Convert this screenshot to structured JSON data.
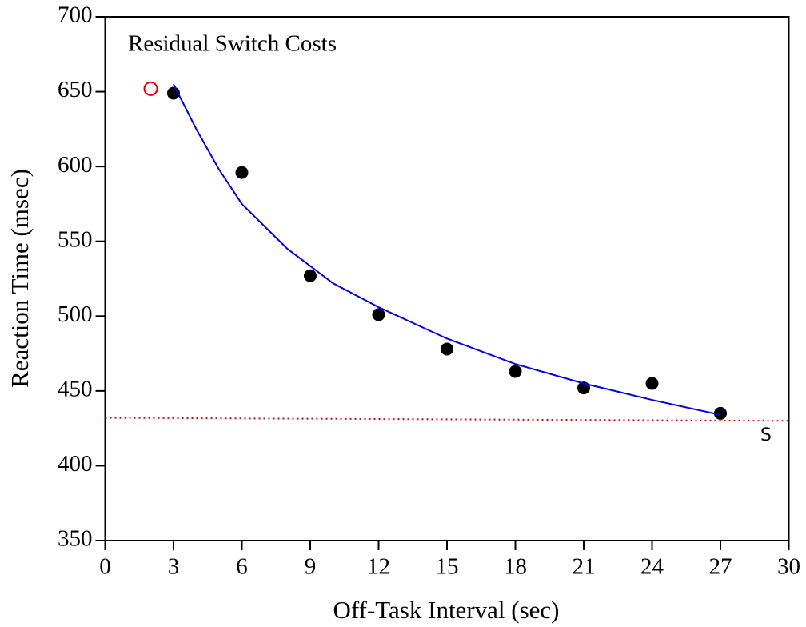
{
  "chart_data": {
    "type": "scatter",
    "title": "Residual Switch Costs",
    "xlabel": "Off-Task Interval (sec)",
    "ylabel": "Reaction Time (msec)",
    "xlim": [
      0,
      30
    ],
    "ylim": [
      350,
      700
    ],
    "xticks": [
      0,
      3,
      6,
      9,
      12,
      15,
      18,
      21,
      24,
      27,
      30
    ],
    "yticks": [
      350,
      400,
      450,
      500,
      550,
      600,
      650,
      700
    ],
    "series": [
      {
        "kind": "points",
        "color": "#000000",
        "x": [
          3,
          6,
          9,
          12,
          15,
          18,
          21,
          24,
          27
        ],
        "values": [
          649,
          596,
          527,
          501,
          478,
          463,
          452,
          455,
          435
        ]
      },
      {
        "kind": "open",
        "color": "#e00000",
        "x": [
          2
        ],
        "values": [
          652
        ]
      },
      {
        "kind": "curve",
        "color": "#0000dd",
        "x": [
          3,
          4,
          5,
          6,
          8,
          10,
          12,
          15,
          18,
          21,
          24,
          27
        ],
        "values": [
          655,
          625,
          598,
          575,
          545,
          522,
          506,
          485,
          468,
          455,
          444,
          434
        ]
      },
      {
        "kind": "dotted",
        "color": "#e00000",
        "x": [
          0,
          30
        ],
        "values": [
          432,
          430
        ]
      }
    ],
    "annotation": {
      "text": "S",
      "x": 29,
      "y": 420,
      "color": "#e00000"
    }
  }
}
